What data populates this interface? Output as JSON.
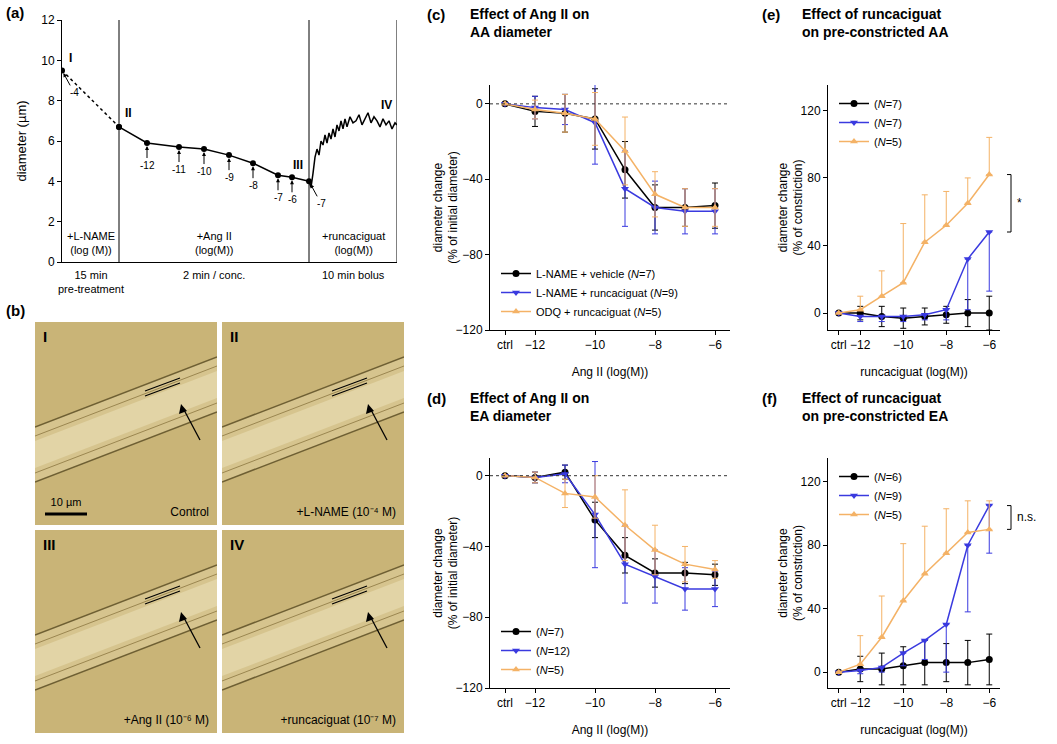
{
  "chart_data": [
    {
      "panel_label": "(a)",
      "type": "line",
      "y_label": "diameter (µm)",
      "xlim": [
        0,
        335
      ],
      "ylim": [
        0,
        12
      ],
      "yticks": [
        0,
        2,
        4,
        6,
        8,
        10,
        12
      ],
      "tick_labels": "y",
      "segments": [
        {
          "start": 0,
          "end": 57,
          "label": "+L-NAME (log (M))",
          "duration": "15 min pre-treatment"
        },
        {
          "start": 57,
          "end": 247,
          "label": "+Ang II (log(M))",
          "duration": "2 min / conc."
        },
        {
          "start": 247,
          "end": 335,
          "label": "+runcaciguat (log(M))",
          "duration": "10 min bolus"
        }
      ],
      "series": [
        {
          "color": "#000000",
          "line_style": "dotted",
          "marker": "circle",
          "x": [
            0,
            57
          ],
          "values": [
            9.5,
            6.7
          ]
        },
        {
          "color": "#000000",
          "line_style": "solid",
          "marker": "circle",
          "x": [
            57,
            85,
            117,
            142,
            167,
            191,
            216,
            230,
            247
          ],
          "values": [
            6.7,
            5.9,
            5.7,
            5.6,
            5.3,
            4.9,
            4.3,
            4.2,
            4.0
          ]
        },
        {
          "color": "#000000",
          "line_style": "solid",
          "marker": "none",
          "x": [
            247,
            249,
            251,
            253,
            255,
            257,
            259,
            261,
            263,
            265,
            267,
            269,
            271,
            273,
            275,
            277,
            279,
            281,
            283,
            285,
            288,
            291,
            294,
            297,
            300,
            303,
            306,
            309,
            312,
            315,
            318,
            321,
            324,
            327,
            330,
            333,
            335
          ],
          "values": [
            4.0,
            3.7,
            4.4,
            5.2,
            5.6,
            5.3,
            6.0,
            5.8,
            6.3,
            5.9,
            6.4,
            6.1,
            6.6,
            6.2,
            6.8,
            6.5,
            7.0,
            6.6,
            7.1,
            6.7,
            7.2,
            6.9,
            7.0,
            7.3,
            6.8,
            7.1,
            7.4,
            6.9,
            7.2,
            7.0,
            6.7,
            7.1,
            6.8,
            7.0,
            6.6,
            6.9,
            6.8
          ]
        }
      ],
      "point_labels": [
        {
          "x": 0,
          "y": 9.5,
          "text": "-4"
        },
        {
          "x": 85,
          "y": 5.9,
          "text": "-12"
        },
        {
          "x": 117,
          "y": 5.7,
          "text": "-11"
        },
        {
          "x": 142,
          "y": 5.6,
          "text": "-10"
        },
        {
          "x": 167,
          "y": 5.3,
          "text": "-9"
        },
        {
          "x": 191,
          "y": 4.9,
          "text": "-8"
        },
        {
          "x": 216,
          "y": 4.3,
          "text": "-7"
        },
        {
          "x": 230,
          "y": 4.2,
          "text": "-6"
        },
        {
          "x": 247,
          "y": 4.0,
          "text": "-7"
        }
      ],
      "point_names": [
        {
          "x": 0,
          "y": 9.5,
          "text": "I"
        },
        {
          "x": 57,
          "y": 6.7,
          "text": "II"
        },
        {
          "x": 247,
          "y": 4.0,
          "text": "III"
        },
        {
          "x": 330,
          "y": 7.0,
          "text": "IV"
        }
      ]
    },
    {
      "panel_label": "(c)",
      "type": "line",
      "title": "Effect of Ang II on AA diameter",
      "x_label": "Ang II (log(M))",
      "y_label": "diameter change (% of initial diameter)",
      "categories": [
        "ctrl",
        "−12",
        null,
        "−10",
        null,
        "−8",
        null,
        "−6"
      ],
      "ylim": [
        -120,
        10
      ],
      "yticks": [
        {
          "value": -120,
          "label": "−120"
        },
        {
          "value": -80,
          "label": "−80"
        },
        {
          "value": -40,
          "label": "−40"
        },
        0
      ],
      "reference_line": 0,
      "legend": "lower left",
      "series": [
        {
          "name": "L-NAME + vehicle (N=7)",
          "color": "#000000",
          "marker": "circle",
          "line_style": "solid",
          "values": [
            0,
            -4,
            -5,
            -8,
            -35,
            -55,
            -55,
            -54
          ],
          "errors": [
            0,
            8,
            10,
            16,
            15,
            12,
            10,
            12
          ]
        },
        {
          "name": "L-NAME + runcaciguat (N=9)",
          "color": "#3a3adf",
          "marker": "triangle-down",
          "line_style": "solid",
          "values": [
            0,
            -2,
            -3,
            -10,
            -45,
            -55,
            -57,
            -57
          ],
          "errors": [
            0,
            6,
            8,
            22,
            20,
            14,
            12,
            12
          ]
        },
        {
          "name": "ODQ + runcaciguat (N=5)",
          "color": "#f4b266",
          "marker": "triangle-up",
          "line_style": "solid",
          "values": [
            0,
            -3,
            -5,
            -8,
            -25,
            -48,
            -55,
            -55
          ],
          "errors": [
            0,
            5,
            10,
            14,
            18,
            12,
            10,
            10
          ]
        }
      ]
    },
    {
      "panel_label": "(d)",
      "type": "line",
      "title": "Effect of Ang II on EA diameter",
      "x_label": "Ang II (log(M))",
      "y_label": "diameter change (% of initial diameter)",
      "categories": [
        "ctrl",
        "−12",
        null,
        "−10",
        null,
        "−8",
        null,
        "−6"
      ],
      "ylim": [
        -120,
        10
      ],
      "yticks": [
        {
          "value": -120,
          "label": "−120"
        },
        {
          "value": -80,
          "label": "−80"
        },
        {
          "value": -40,
          "label": "−40"
        },
        0
      ],
      "reference_line": 0,
      "legend": "lower left",
      "series": [
        {
          "name": "(N=7)",
          "color": "#000000",
          "marker": "circle",
          "line_style": "solid",
          "values": [
            0,
            -1,
            2,
            -25,
            -45,
            -55,
            -55,
            -56
          ],
          "errors": [
            0,
            3,
            4,
            10,
            10,
            8,
            6,
            6
          ]
        },
        {
          "name": "(N=12)",
          "color": "#3a3adf",
          "marker": "triangle-down",
          "line_style": "solid",
          "values": [
            0,
            -1,
            1,
            -22,
            -50,
            -57,
            -64,
            -64
          ],
          "errors": [
            0,
            3,
            5,
            30,
            22,
            15,
            12,
            10
          ]
        },
        {
          "name": "(N=5)",
          "color": "#f4b266",
          "marker": "triangle-up",
          "line_style": "solid",
          "values": [
            0,
            -1,
            -10,
            -12,
            -28,
            -42,
            -50,
            -53
          ],
          "errors": [
            0,
            3,
            8,
            12,
            20,
            14,
            10,
            5
          ]
        }
      ]
    },
    {
      "panel_label": "(e)",
      "type": "line",
      "title": "Effect of runcaciguat on pre-constricted AA",
      "x_label": "runcaciguat (log(M))",
      "y_label": "diameter change (% of constriction)",
      "categories": [
        "ctrl",
        "−12",
        null,
        "−10",
        null,
        "−8",
        null,
        "−6"
      ],
      "ylim": [
        -10,
        135
      ],
      "yticks": [
        0,
        40,
        80,
        120
      ],
      "legend": "upper left",
      "significance": "*",
      "series": [
        {
          "name": "(N=7)",
          "color": "#000000",
          "marker": "circle",
          "line_style": "solid",
          "values": [
            0,
            0,
            -2,
            -3,
            -2,
            -1,
            0,
            0
          ],
          "error_plus": [
            0,
            4,
            6,
            6,
            5,
            5,
            8,
            10
          ],
          "error_minus": [
            0,
            4,
            6,
            6,
            5,
            5,
            8,
            10
          ]
        },
        {
          "name": "(N=7)",
          "color": "#3a3adf",
          "marker": "triangle-down",
          "line_style": "solid",
          "values": [
            0,
            -2,
            -2,
            -2,
            -1,
            2,
            32,
            48
          ],
          "error_plus": [
            0,
            0,
            0,
            0,
            0,
            0,
            0,
            0
          ],
          "error_minus": [
            0,
            3,
            3,
            3,
            3,
            6,
            30,
            35
          ]
        },
        {
          "name": "(N=5)",
          "color": "#f4b266",
          "marker": "triangle-up",
          "line_style": "solid",
          "values": [
            0,
            2,
            10,
            18,
            42,
            52,
            65,
            82
          ],
          "error_plus": [
            0,
            8,
            15,
            35,
            28,
            20,
            15,
            22
          ],
          "error_minus": [
            0,
            0,
            0,
            0,
            0,
            0,
            0,
            0
          ]
        }
      ]
    },
    {
      "panel_label": "(f)",
      "type": "line",
      "title": "Effect of runcaciguat on pre-constricted EA",
      "x_label": "runcaciguat (log(M))",
      "y_label": "diameter change (% of constriction)",
      "categories": [
        "ctrl",
        "−12",
        null,
        "−10",
        null,
        "−8",
        null,
        "−6"
      ],
      "ylim": [
        -10,
        135
      ],
      "yticks": [
        0,
        40,
        80,
        120
      ],
      "legend": "upper left",
      "significance": "n.s.",
      "series": [
        {
          "name": "(N=6)",
          "color": "#000000",
          "marker": "circle",
          "line_style": "solid",
          "values": [
            0,
            2,
            2,
            4,
            6,
            6,
            6,
            8
          ],
          "error_plus": [
            0,
            8,
            10,
            12,
            14,
            12,
            14,
            16
          ],
          "error_minus": [
            0,
            8,
            10,
            12,
            14,
            12,
            14,
            16
          ]
        },
        {
          "name": "(N=9)",
          "color": "#3a3adf",
          "marker": "triangle-down",
          "line_style": "solid",
          "values": [
            0,
            1,
            3,
            12,
            20,
            30,
            80,
            105
          ],
          "error_plus": [
            0,
            0,
            0,
            0,
            0,
            0,
            0,
            0
          ],
          "error_minus": [
            0,
            2,
            3,
            8,
            12,
            30,
            42,
            30
          ]
        },
        {
          "name": "(N=5)",
          "color": "#f4b266",
          "marker": "triangle-up",
          "line_style": "solid",
          "values": [
            0,
            5,
            22,
            45,
            62,
            75,
            88,
            90
          ],
          "error_plus": [
            0,
            18,
            26,
            36,
            30,
            28,
            20,
            18
          ],
          "error_minus": [
            0,
            0,
            0,
            0,
            0,
            0,
            0,
            0
          ]
        }
      ]
    }
  ],
  "image_panel": {
    "panel_label": "(b)",
    "scale_bar": "10 µm",
    "images": [
      {
        "numeral": "I",
        "caption": "Control"
      },
      {
        "numeral": "II",
        "caption": "+L-NAME (10⁻⁴ M)"
      },
      {
        "numeral": "III",
        "caption": "+Ang II (10⁻⁶ M)"
      },
      {
        "numeral": "IV",
        "caption": "+runcaciguat (10⁻⁷ M)"
      }
    ]
  }
}
